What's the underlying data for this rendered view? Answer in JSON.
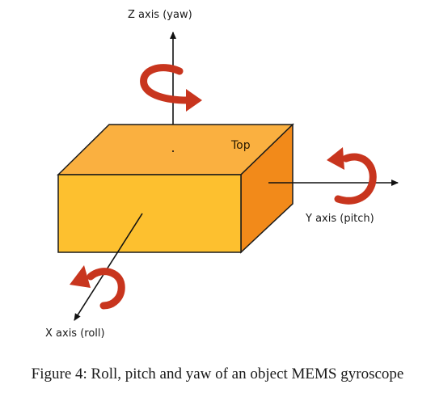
{
  "diagram": {
    "z_axis_label": "Z axis (yaw)",
    "y_axis_label": "Y axis (pitch)",
    "x_axis_label": "X axis (roll)",
    "top_face_label": "Top"
  },
  "caption": "Figure 4: Roll, pitch and yaw of an object MEMS gyroscope",
  "colors": {
    "box_top": "#FAB040",
    "box_front": "#FDC02F",
    "box_side": "#F28A1A",
    "box_outline": "#1a1a1a",
    "rotation_arrow": "#C8351E",
    "axis": "#111111"
  }
}
